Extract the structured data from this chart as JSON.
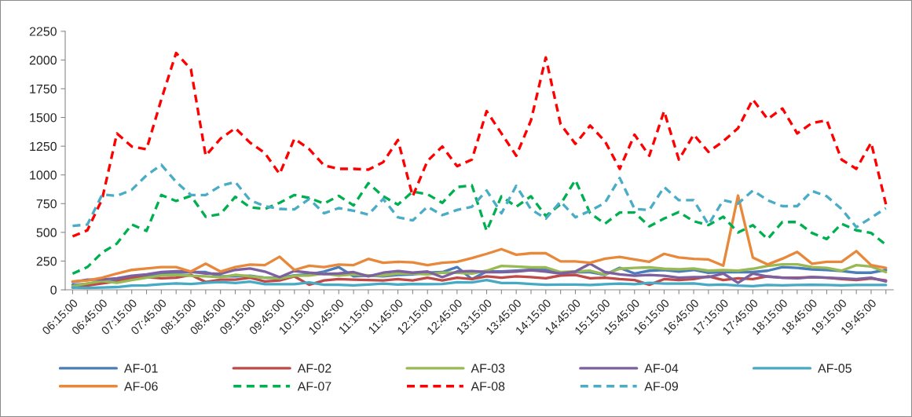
{
  "chart_data": {
    "type": "line",
    "categories": [
      "06:15:00",
      null,
      "06:45:00",
      null,
      "07:15:00",
      null,
      "07:45:00",
      null,
      "08:15:00",
      null,
      "08:45:00",
      null,
      "09:15:00",
      null,
      "09:45:00",
      null,
      "10:15:00",
      null,
      "10:45:00",
      null,
      "11:15:00",
      null,
      "11:45:00",
      null,
      "12:15:00",
      null,
      "12:45:00",
      null,
      "13:15:00",
      null,
      "13:45:00",
      null,
      "14:15:00",
      null,
      "14:45:00",
      null,
      "15:15:00",
      null,
      "15:45:00",
      null,
      "16:15:00",
      null,
      "16:45:00",
      null,
      "17:15:00",
      null,
      "17:45:00",
      null,
      "18:15:00",
      null,
      "18:45:00",
      null,
      "19:15:00",
      null,
      "19:45:00",
      null
    ],
    "ylim": [
      0,
      2250
    ],
    "yticks": [
      0,
      250,
      500,
      750,
      1000,
      1250,
      1500,
      1750,
      2000,
      2250
    ],
    "grid": false,
    "legend": "bottom",
    "marker": "none",
    "series": [
      {
        "name": "AF-01",
        "color": "#4a7ebb",
        "line_style": "solid",
        "values": [
          44,
          51,
          68,
          81,
          110,
          122,
          142,
          149,
          154,
          154,
          117,
          117,
          122,
          105,
          105,
          125,
          134,
          159,
          198,
          117,
          125,
          117,
          130,
          134,
          149,
          154,
          198,
          93,
          159,
          159,
          166,
          173,
          173,
          149,
          154,
          154,
          130,
          191,
          142,
          166,
          173,
          159,
          173,
          149,
          154,
          154,
          154,
          166,
          198,
          191,
          178,
          173,
          164,
          149,
          149,
          173
        ]
      },
      {
        "name": "AF-02",
        "color": "#be4b48",
        "line_style": "solid",
        "values": [
          20,
          37,
          56,
          73,
          105,
          110,
          100,
          105,
          130,
          68,
          88,
          88,
          105,
          73,
          81,
          117,
          44,
          81,
          93,
          88,
          85,
          81,
          93,
          81,
          105,
          81,
          105,
          93,
          117,
          105,
          117,
          110,
          100,
          125,
          130,
          100,
          105,
          93,
          85,
          44,
          93,
          85,
          93,
          117,
          85,
          100,
          93,
          117,
          105,
          105,
          110,
          105,
          93,
          85,
          98,
          81
        ]
      },
      {
        "name": "AF-03",
        "color": "#98b954",
        "line_style": "solid",
        "values": [
          32,
          56,
          76,
          61,
          85,
          105,
          125,
          130,
          122,
          117,
          110,
          130,
          117,
          105,
          98,
          122,
          125,
          142,
          125,
          134,
          125,
          125,
          142,
          142,
          134,
          149,
          149,
          142,
          166,
          208,
          203,
          195,
          195,
          154,
          159,
          166,
          134,
          183,
          191,
          195,
          183,
          178,
          186,
          166,
          171,
          166,
          183,
          208,
          222,
          222,
          198,
          191,
          166,
          215,
          203,
          154
        ]
      },
      {
        "name": "AF-04",
        "color": "#7d60a0",
        "line_style": "solid",
        "values": [
          68,
          88,
          90,
          100,
          122,
          134,
          154,
          161,
          159,
          142,
          139,
          173,
          186,
          159,
          110,
          164,
          149,
          137,
          142,
          154,
          117,
          149,
          164,
          149,
          159,
          110,
          159,
          164,
          154,
          154,
          159,
          171,
          159,
          142,
          159,
          227,
          154,
          134,
          122,
          129,
          122,
          105,
          110,
          110,
          142,
          61,
          142,
          115,
          105,
          100,
          110,
          105,
          100,
          93,
          105,
          73
        ]
      },
      {
        "name": "AF-05",
        "color": "#46aac5",
        "line_style": "solid",
        "values": [
          20,
          17,
          20,
          24,
          37,
          39,
          49,
          56,
          51,
          61,
          68,
          59,
          71,
          49,
          49,
          49,
          64,
          44,
          44,
          39,
          46,
          54,
          46,
          51,
          49,
          51,
          66,
          64,
          85,
          59,
          59,
          51,
          44,
          46,
          46,
          42,
          49,
          54,
          49,
          61,
          54,
          54,
          56,
          42,
          46,
          37,
          32,
          42,
          39,
          42,
          44,
          42,
          39,
          42,
          42,
          42
        ]
      },
      {
        "name": "AF-06",
        "color": "#e8883a",
        "line_style": "solid",
        "values": [
          73,
          81,
          105,
          142,
          173,
          186,
          198,
          198,
          159,
          227,
          159,
          198,
          220,
          215,
          288,
          173,
          210,
          198,
          220,
          215,
          269,
          235,
          244,
          239,
          215,
          235,
          244,
          276,
          313,
          354,
          305,
          318,
          318,
          247,
          247,
          235,
          271,
          286,
          264,
          244,
          313,
          281,
          269,
          264,
          210,
          820,
          281,
          220,
          271,
          330,
          227,
          244,
          244,
          337,
          215,
          191
        ]
      },
      {
        "name": "AF-07",
        "color": "#00b050",
        "line_style": "dashed",
        "values": [
          141,
          198,
          324,
          403,
          568,
          513,
          825,
          773,
          818,
          636,
          659,
          809,
          718,
          704,
          757,
          825,
          800,
          750,
          818,
          734,
          928,
          814,
          741,
          855,
          832,
          757,
          894,
          910,
          513,
          814,
          723,
          814,
          643,
          745,
          955,
          666,
          575,
          673,
          673,
          552,
          620,
          677,
          597,
          563,
          636,
          499,
          563,
          442,
          590,
          590,
          495,
          442,
          575,
          518,
          495,
          392
        ]
      },
      {
        "name": "AF-08",
        "color": "#ff0000",
        "line_style": "dashed",
        "values": [
          465,
          518,
          790,
          1361,
          1247,
          1224,
          1657,
          2061,
          1920,
          1167,
          1315,
          1407,
          1281,
          1190,
          1008,
          1315,
          1224,
          1083,
          1053,
          1053,
          1046,
          1110,
          1304,
          814,
          1122,
          1247,
          1076,
          1133,
          1555,
          1361,
          1167,
          1475,
          2022,
          1441,
          1270,
          1430,
          1293,
          1053,
          1350,
          1167,
          1555,
          1133,
          1350,
          1201,
          1293,
          1407,
          1657,
          1486,
          1578,
          1361,
          1452,
          1475,
          1133,
          1053,
          1281,
          745
        ]
      },
      {
        "name": "AF-09",
        "color": "#4bacc6",
        "line_style": "dashed",
        "values": [
          556,
          568,
          829,
          818,
          871,
          997,
          1088,
          939,
          825,
          825,
          905,
          939,
          780,
          728,
          704,
          700,
          791,
          666,
          711,
          688,
          654,
          791,
          631,
          604,
          723,
          650,
          695,
          723,
          864,
          666,
          905,
          700,
          620,
          768,
          631,
          688,
          757,
          973,
          704,
          695,
          894,
          780,
          780,
          568,
          780,
          750,
          864,
          780,
          728,
          728,
          860,
          814,
          704,
          545,
          627,
          711
        ]
      }
    ]
  }
}
